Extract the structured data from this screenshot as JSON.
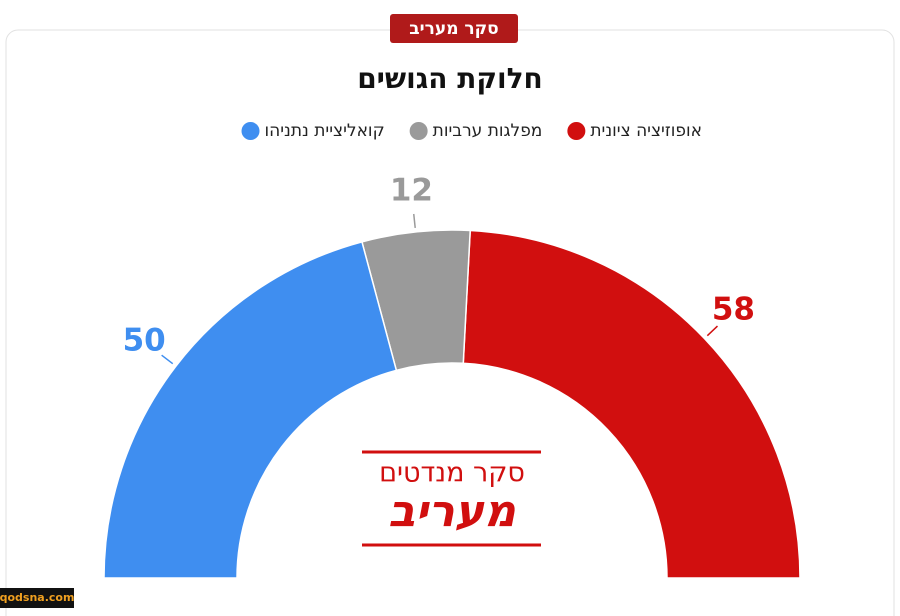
{
  "chart_data": {
    "type": "semidonut",
    "badge": "סקר מעריב",
    "title": "חלוקת הגושים",
    "categories": [
      "אופוזיציה ציונית",
      "מפלגות ערביות",
      "קואליציית נתניהו"
    ],
    "values": [
      58,
      12,
      50
    ],
    "colors": [
      "#d10f0f",
      "#9a9a9a",
      "#3f8ef0"
    ],
    "center_title": "סקר מנדטים",
    "center_logo": "מעריב",
    "watermark": "qodsna.com"
  }
}
